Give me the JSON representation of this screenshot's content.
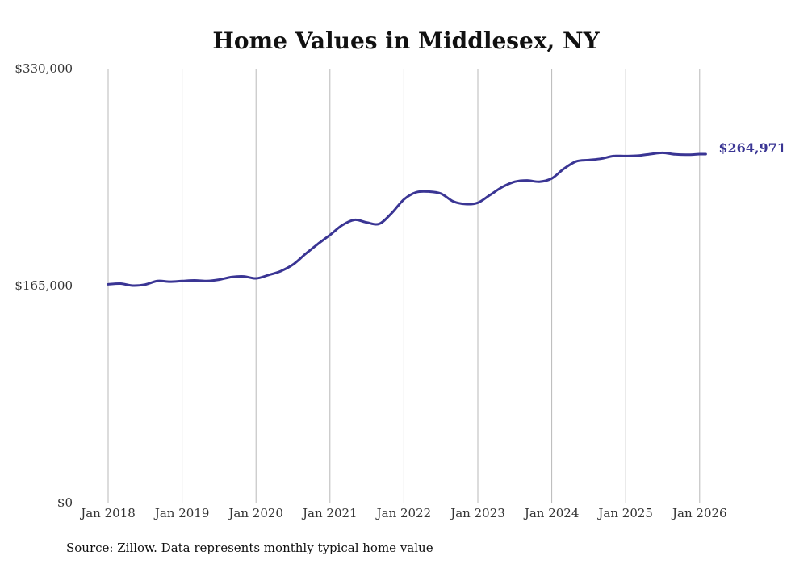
{
  "chart_data": {
    "type": "line",
    "title": "Home Values in Middlesex, NY",
    "xlabel": "",
    "ylabel": "",
    "source_note": "Source: Zillow. Data represents monthly typical home value",
    "ylim": [
      0,
      330000
    ],
    "y_ticks": [
      {
        "value": 0,
        "label": "$0"
      },
      {
        "value": 165000,
        "label": "$165,000"
      },
      {
        "value": 330000,
        "label": "$330,000"
      }
    ],
    "x_range": [
      2018.0,
      2026.083
    ],
    "x_ticks": [
      {
        "value": 2018,
        "label": "Jan 2018"
      },
      {
        "value": 2019,
        "label": "Jan 2019"
      },
      {
        "value": 2020,
        "label": "Jan 2020"
      },
      {
        "value": 2021,
        "label": "Jan 2021"
      },
      {
        "value": 2022,
        "label": "Jan 2022"
      },
      {
        "value": 2023,
        "label": "Jan 2023"
      },
      {
        "value": 2024,
        "label": "Jan 2024"
      },
      {
        "value": 2025,
        "label": "Jan 2025"
      },
      {
        "value": 2026,
        "label": "Jan 2026"
      }
    ],
    "grid": {
      "vertical": true,
      "horizontal": false
    },
    "colors": {
      "line": "#3a3594",
      "end_label": "#3a3594",
      "grid": "#b8b8b8"
    },
    "end_label": "$264,971",
    "series": [
      {
        "x": [
          2018.0,
          2018.167,
          2018.333,
          2018.5,
          2018.667,
          2018.833,
          2019.0,
          2019.167,
          2019.333,
          2019.5,
          2019.667,
          2019.833,
          2020.0,
          2020.167,
          2020.333,
          2020.5,
          2020.667,
          2020.833,
          2021.0,
          2021.167,
          2021.333,
          2021.5,
          2021.667,
          2021.833,
          2022.0,
          2022.167,
          2022.333,
          2022.5,
          2022.667,
          2022.833,
          2023.0,
          2023.167,
          2023.333,
          2023.5,
          2023.667,
          2023.833,
          2024.0,
          2024.167,
          2024.333,
          2024.5,
          2024.667,
          2024.833,
          2025.0,
          2025.167,
          2025.333,
          2025.5,
          2025.667,
          2025.833,
          2026.0,
          2026.083
        ],
        "values": [
          166000,
          166500,
          165000,
          165800,
          168500,
          168000,
          168500,
          169000,
          168500,
          169500,
          171500,
          172000,
          170500,
          173000,
          176000,
          181000,
          189000,
          196500,
          203500,
          211000,
          215000,
          213000,
          212000,
          220000,
          230500,
          236000,
          236500,
          235000,
          229000,
          227000,
          228000,
          234000,
          240000,
          244000,
          245000,
          244000,
          246500,
          254000,
          259500,
          260500,
          261500,
          263500,
          263500,
          263800,
          265000,
          266000,
          264800,
          264500,
          264971,
          264971
        ]
      }
    ]
  }
}
